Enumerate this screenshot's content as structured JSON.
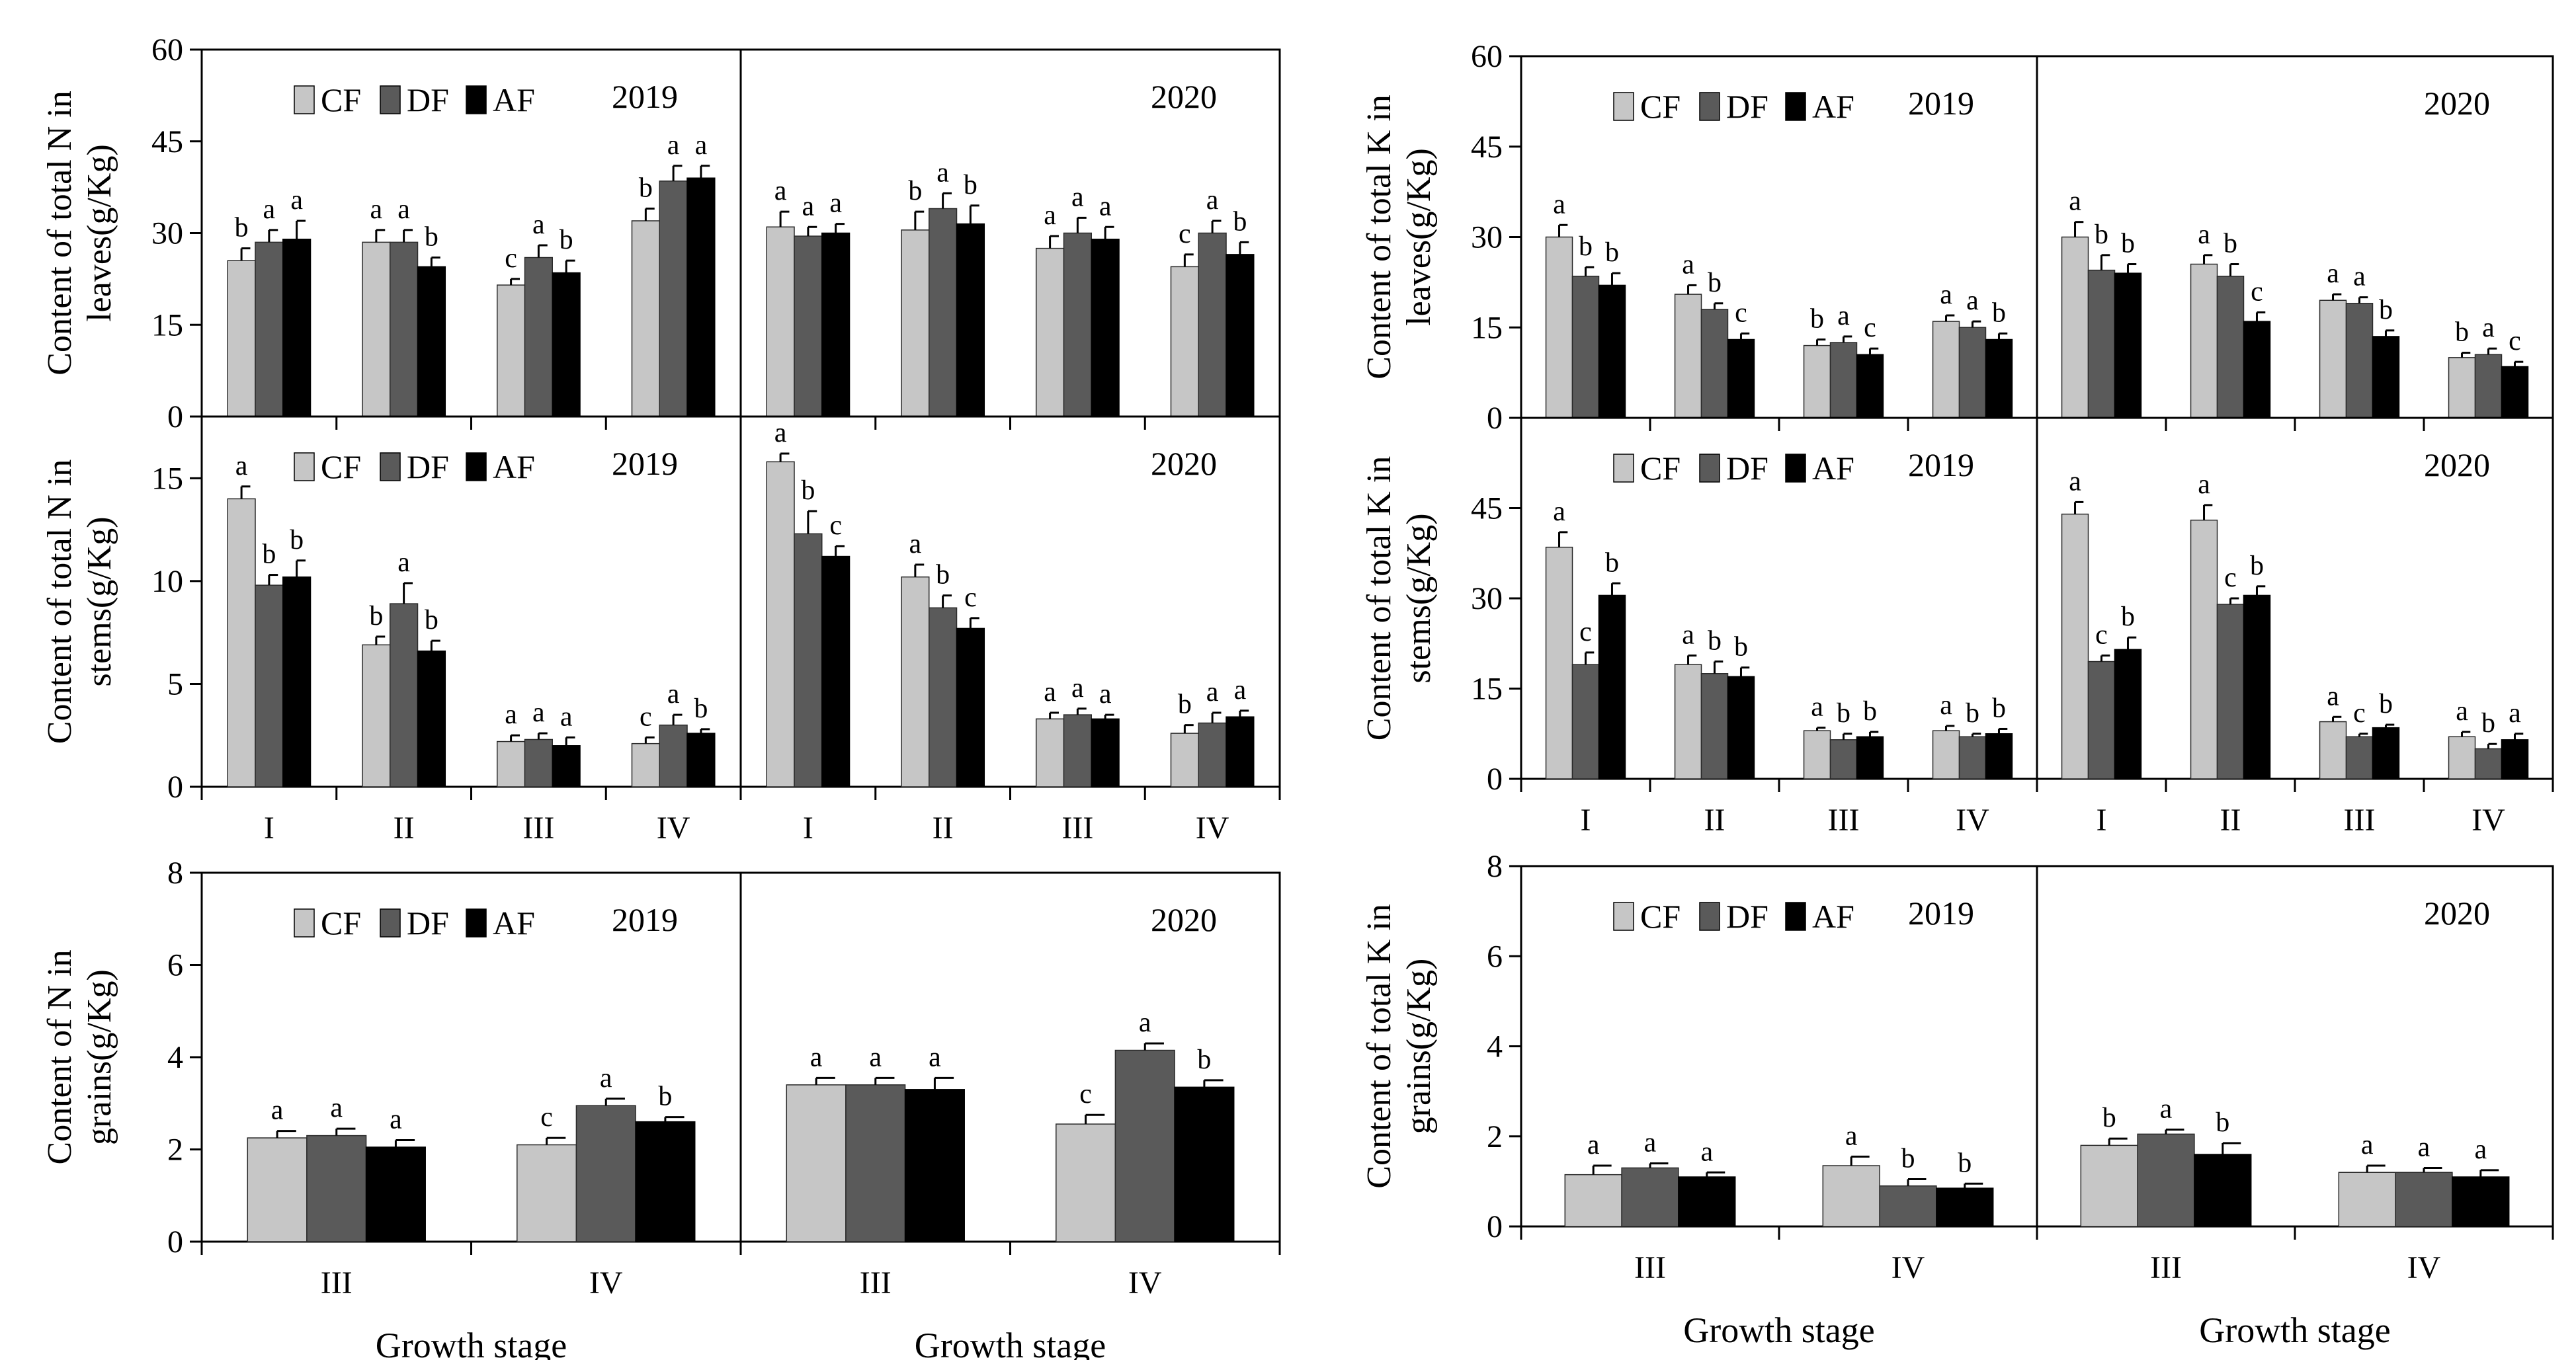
{
  "colors": {
    "CF": "#c6c6c6",
    "DF": "#5a5a5a",
    "AF": "#000000"
  },
  "xlabel": "Growth stage",
  "chart_data": [
    {
      "type": "bar",
      "id": "n-leaves",
      "ylabel": [
        "Content of total N in",
        "leaves(g/Kg)"
      ],
      "ylim": [
        0,
        60
      ],
      "yticks": [
        0,
        15,
        30,
        45,
        60
      ],
      "legend": [
        "CF",
        "DF",
        "AF"
      ],
      "years": [
        "2019",
        "2020"
      ],
      "categories": [
        "I",
        "II",
        "III",
        "IV"
      ],
      "show_categories": false,
      "panels": [
        {
          "year": "2019",
          "series": [
            {
              "name": "CF",
              "values": [
                25.5,
                28.5,
                21.5,
                32
              ],
              "err": [
                2,
                2,
                1,
                2
              ],
              "letters": [
                "b",
                "a",
                "c",
                "b"
              ]
            },
            {
              "name": "DF",
              "values": [
                28.5,
                28.5,
                26,
                38.5
              ],
              "err": [
                2,
                2,
                2,
                2.5
              ],
              "letters": [
                "a",
                "a",
                "a",
                "a"
              ]
            },
            {
              "name": "AF",
              "values": [
                29,
                24.5,
                23.5,
                39
              ],
              "err": [
                3,
                1.5,
                2,
                2
              ],
              "letters": [
                "a",
                "b",
                "b",
                "a"
              ]
            }
          ]
        },
        {
          "year": "2020",
          "series": [
            {
              "name": "CF",
              "values": [
                31,
                30.5,
                27.5,
                24.5
              ],
              "err": [
                2.5,
                3,
                2,
                2
              ],
              "letters": [
                "a",
                "b",
                "a",
                "c"
              ]
            },
            {
              "name": "DF",
              "values": [
                29.5,
                34,
                30,
                30
              ],
              "err": [
                1.5,
                2.5,
                2.5,
                2
              ],
              "letters": [
                "a",
                "a",
                "a",
                "a"
              ]
            },
            {
              "name": "AF",
              "values": [
                30,
                31.5,
                29,
                26.5
              ],
              "err": [
                1.5,
                3,
                2,
                2
              ],
              "letters": [
                "a",
                "b",
                "a",
                "b"
              ]
            }
          ]
        }
      ]
    },
    {
      "type": "bar",
      "id": "n-stems",
      "ylabel": [
        "Content of total N in",
        "stems(g/Kg)"
      ],
      "ylim": [
        0,
        18
      ],
      "yticks": [
        0,
        5,
        10,
        15
      ],
      "legend": [
        "CF",
        "DF",
        "AF"
      ],
      "years": [
        "2019",
        "2020"
      ],
      "categories": [
        "I",
        "II",
        "III",
        "IV"
      ],
      "show_categories": true,
      "panels": [
        {
          "year": "2019",
          "series": [
            {
              "name": "CF",
              "values": [
                14,
                6.9,
                2.2,
                2.1
              ],
              "err": [
                0.6,
                0.4,
                0.3,
                0.3
              ],
              "letters": [
                "a",
                "b",
                "a",
                "c"
              ]
            },
            {
              "name": "DF",
              "values": [
                9.8,
                8.9,
                2.3,
                3
              ],
              "err": [
                0.5,
                1,
                0.3,
                0.5
              ],
              "letters": [
                "b",
                "a",
                "a",
                "a"
              ]
            },
            {
              "name": "AF",
              "values": [
                10.2,
                6.6,
                2,
                2.6
              ],
              "err": [
                0.8,
                0.5,
                0.4,
                0.2
              ],
              "letters": [
                "b",
                "b",
                "a",
                "b"
              ]
            }
          ]
        },
        {
          "year": "2020",
          "series": [
            {
              "name": "CF",
              "values": [
                15.8,
                10.2,
                3.3,
                2.6
              ],
              "err": [
                0.4,
                0.6,
                0.3,
                0.4
              ],
              "letters": [
                "a",
                "a",
                "a",
                "b"
              ]
            },
            {
              "name": "DF",
              "values": [
                12.3,
                8.7,
                3.5,
                3.1
              ],
              "err": [
                1.1,
                0.6,
                0.3,
                0.5
              ],
              "letters": [
                "b",
                "b",
                "a",
                "a"
              ]
            },
            {
              "name": "AF",
              "values": [
                11.2,
                7.7,
                3.3,
                3.4
              ],
              "err": [
                0.5,
                0.5,
                0.2,
                0.3
              ],
              "letters": [
                "c",
                "c",
                "a",
                "a"
              ]
            }
          ]
        }
      ]
    },
    {
      "type": "bar",
      "id": "n-grains",
      "ylabel": [
        "Content of N in",
        "grains(g/Kg)"
      ],
      "ylim": [
        0,
        8
      ],
      "yticks": [
        0,
        2,
        4,
        6,
        8
      ],
      "legend": [
        "CF",
        "DF",
        "AF"
      ],
      "years": [
        "2019",
        "2020"
      ],
      "categories": [
        "III",
        "IV"
      ],
      "show_categories": true,
      "panels": [
        {
          "year": "2019",
          "series": [
            {
              "name": "CF",
              "values": [
                2.25,
                2.1
              ],
              "err": [
                0.15,
                0.15
              ],
              "letters": [
                "a",
                "c"
              ]
            },
            {
              "name": "DF",
              "values": [
                2.3,
                2.95
              ],
              "err": [
                0.15,
                0.15
              ],
              "letters": [
                "a",
                "a"
              ]
            },
            {
              "name": "AF",
              "values": [
                2.05,
                2.6
              ],
              "err": [
                0.15,
                0.1
              ],
              "letters": [
                "a",
                "b"
              ]
            }
          ]
        },
        {
          "year": "2020",
          "series": [
            {
              "name": "CF",
              "values": [
                3.4,
                2.55
              ],
              "err": [
                0.15,
                0.2
              ],
              "letters": [
                "a",
                "c"
              ]
            },
            {
              "name": "DF",
              "values": [
                3.4,
                4.15
              ],
              "err": [
                0.15,
                0.15
              ],
              "letters": [
                "a",
                "a"
              ]
            },
            {
              "name": "AF",
              "values": [
                3.3,
                3.35
              ],
              "err": [
                0.25,
                0.15
              ],
              "letters": [
                "a",
                "b"
              ]
            }
          ]
        }
      ]
    },
    {
      "type": "bar",
      "id": "k-leaves",
      "ylabel": [
        "Content of total K in",
        "leaves(g/Kg)"
      ],
      "ylim": [
        0,
        60
      ],
      "yticks": [
        0,
        15,
        30,
        45,
        60
      ],
      "legend": [
        "CF",
        "DF",
        "AF"
      ],
      "years": [
        "2019",
        "2020"
      ],
      "categories": [
        "I",
        "II",
        "III",
        "IV"
      ],
      "show_categories": false,
      "panels": [
        {
          "year": "2019",
          "series": [
            {
              "name": "CF",
              "values": [
                30,
                20.5,
                12,
                16
              ],
              "err": [
                2,
                1.5,
                1,
                1
              ],
              "letters": [
                "a",
                "a",
                "b",
                "a"
              ]
            },
            {
              "name": "DF",
              "values": [
                23.5,
                18,
                12.5,
                15
              ],
              "err": [
                1.5,
                1,
                1,
                1
              ],
              "letters": [
                "b",
                "b",
                "a",
                "a"
              ]
            },
            {
              "name": "AF",
              "values": [
                22,
                13,
                10.5,
                13
              ],
              "err": [
                2,
                1,
                1,
                1
              ],
              "letters": [
                "b",
                "c",
                "c",
                "b"
              ]
            }
          ]
        },
        {
          "year": "2020",
          "series": [
            {
              "name": "CF",
              "values": [
                30,
                25.5,
                19.5,
                10
              ],
              "err": [
                2.5,
                1.5,
                1,
                0.8
              ],
              "letters": [
                "a",
                "a",
                "a",
                "b"
              ]
            },
            {
              "name": "DF",
              "values": [
                24.5,
                23.5,
                19,
                10.5
              ],
              "err": [
                2.5,
                2,
                1,
                1
              ],
              "letters": [
                "b",
                "b",
                "a",
                "a"
              ]
            },
            {
              "name": "AF",
              "values": [
                24,
                16,
                13.5,
                8.5
              ],
              "err": [
                1.5,
                1.5,
                1,
                0.8
              ],
              "letters": [
                "b",
                "c",
                "b",
                "c"
              ]
            }
          ]
        }
      ]
    },
    {
      "type": "bar",
      "id": "k-stems",
      "ylabel": [
        "Content of total K in",
        "stems(g/Kg)"
      ],
      "ylim": [
        0,
        60
      ],
      "yticks": [
        0,
        15,
        30,
        45
      ],
      "legend": [
        "CF",
        "DF",
        "AF"
      ],
      "years": [
        "2019",
        "2020"
      ],
      "categories": [
        "I",
        "II",
        "III",
        "IV"
      ],
      "show_categories": true,
      "panels": [
        {
          "year": "2019",
          "series": [
            {
              "name": "CF",
              "values": [
                38.5,
                19,
                8,
                8
              ],
              "err": [
                2.5,
                1.5,
                0.5,
                0.8
              ],
              "letters": [
                "a",
                "a",
                "a",
                "a"
              ]
            },
            {
              "name": "DF",
              "values": [
                19,
                17.5,
                6.5,
                7
              ],
              "err": [
                2,
                2,
                1,
                0.5
              ],
              "letters": [
                "c",
                "b",
                "b",
                "b"
              ]
            },
            {
              "name": "AF",
              "values": [
                30.5,
                17,
                7,
                7.5
              ],
              "err": [
                2,
                1.5,
                0.8,
                0.8
              ],
              "letters": [
                "b",
                "b",
                "b",
                "b"
              ]
            }
          ]
        },
        {
          "year": "2020",
          "series": [
            {
              "name": "CF",
              "values": [
                44,
                43,
                9.5,
                7
              ],
              "err": [
                2,
                2.5,
                0.8,
                0.8
              ],
              "letters": [
                "a",
                "a",
                "a",
                "a"
              ]
            },
            {
              "name": "DF",
              "values": [
                19.5,
                29,
                7,
                5
              ],
              "err": [
                1,
                1,
                0.5,
                0.8
              ],
              "letters": [
                "c",
                "c",
                "c",
                "b"
              ]
            },
            {
              "name": "AF",
              "values": [
                21.5,
                30.5,
                8.5,
                6.5
              ],
              "err": [
                2,
                1.5,
                0.5,
                1
              ],
              "letters": [
                "b",
                "b",
                "b",
                "a"
              ]
            }
          ]
        }
      ]
    },
    {
      "type": "bar",
      "id": "k-grains",
      "ylabel": [
        "Content of total K in",
        "grains(g/Kg)"
      ],
      "ylim": [
        0,
        8
      ],
      "yticks": [
        0,
        2,
        4,
        6,
        8
      ],
      "legend": [
        "CF",
        "DF",
        "AF"
      ],
      "years": [
        "2019",
        "2020"
      ],
      "categories": [
        "III",
        "IV"
      ],
      "show_categories": true,
      "panels": [
        {
          "year": "2019",
          "series": [
            {
              "name": "CF",
              "values": [
                1.15,
                1.35
              ],
              "err": [
                0.2,
                0.2
              ],
              "letters": [
                "a",
                "a"
              ]
            },
            {
              "name": "DF",
              "values": [
                1.3,
                0.9
              ],
              "err": [
                0.1,
                0.15
              ],
              "letters": [
                "a",
                "b"
              ]
            },
            {
              "name": "AF",
              "values": [
                1.1,
                0.85
              ],
              "err": [
                0.1,
                0.1
              ],
              "letters": [
                "a",
                "b"
              ]
            }
          ]
        },
        {
          "year": "2020",
          "series": [
            {
              "name": "CF",
              "values": [
                1.8,
                1.2
              ],
              "err": [
                0.15,
                0.15
              ],
              "letters": [
                "b",
                "a"
              ]
            },
            {
              "name": "DF",
              "values": [
                2.05,
                1.2
              ],
              "err": [
                0.1,
                0.1
              ],
              "letters": [
                "a",
                "a"
              ]
            },
            {
              "name": "AF",
              "values": [
                1.6,
                1.1
              ],
              "err": [
                0.25,
                0.15
              ],
              "letters": [
                "b",
                "a"
              ]
            }
          ]
        }
      ]
    }
  ]
}
